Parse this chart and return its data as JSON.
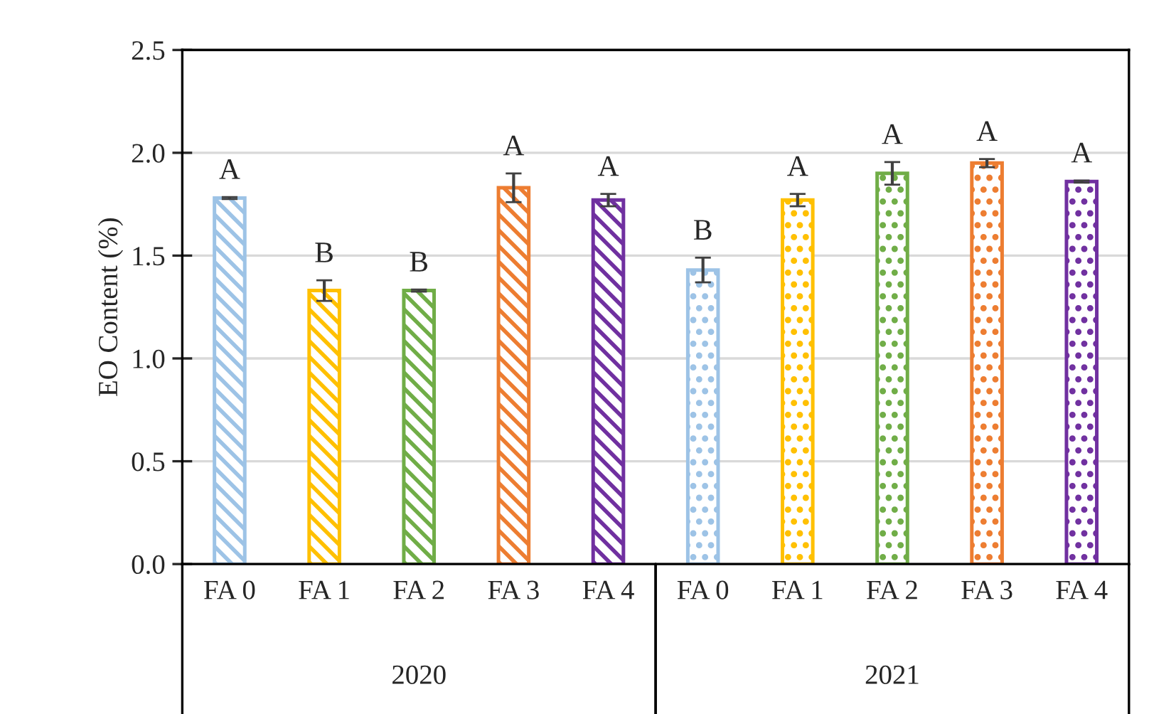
{
  "chart_data": {
    "type": "bar",
    "ylabel": "EO Content (%)",
    "categories": [
      "FA 0",
      "FA 1",
      "FA 2",
      "FA 3",
      "FA 4",
      "FA 0",
      "FA 1",
      "FA 2",
      "FA 3",
      "FA 4"
    ],
    "values": [
      1.78,
      1.33,
      1.33,
      1.83,
      1.77,
      1.43,
      1.77,
      1.9,
      1.95,
      1.86
    ],
    "errors": [
      0.005,
      0.05,
      0.005,
      0.07,
      0.03,
      0.06,
      0.03,
      0.055,
      0.02,
      0.005
    ],
    "value_labels": [
      "A",
      "B",
      "B",
      "A",
      "A",
      "B",
      "A",
      "A",
      "A",
      "A"
    ],
    "colors": [
      "#9dc3e6",
      "#ffc000",
      "#70ad47",
      "#ed7d31",
      "#7030a0",
      "#9dc3e6",
      "#ffc000",
      "#70ad47",
      "#ed7d31",
      "#7030a0"
    ],
    "annotations": [
      "2020",
      "2021"
    ],
    "ylim": [
      0,
      2.5
    ],
    "yticks": [
      {
        "value": 0,
        "label": "0.0"
      },
      {
        "value": 0.5,
        "label": "0.5"
      },
      {
        "value": 1.0,
        "label": "1.0"
      },
      {
        "value": 1.5,
        "label": "1.5"
      },
      {
        "value": 2.0,
        "label": "2.0"
      },
      {
        "value": 2.5,
        "label": "2.5"
      }
    ],
    "grid": "y"
  }
}
